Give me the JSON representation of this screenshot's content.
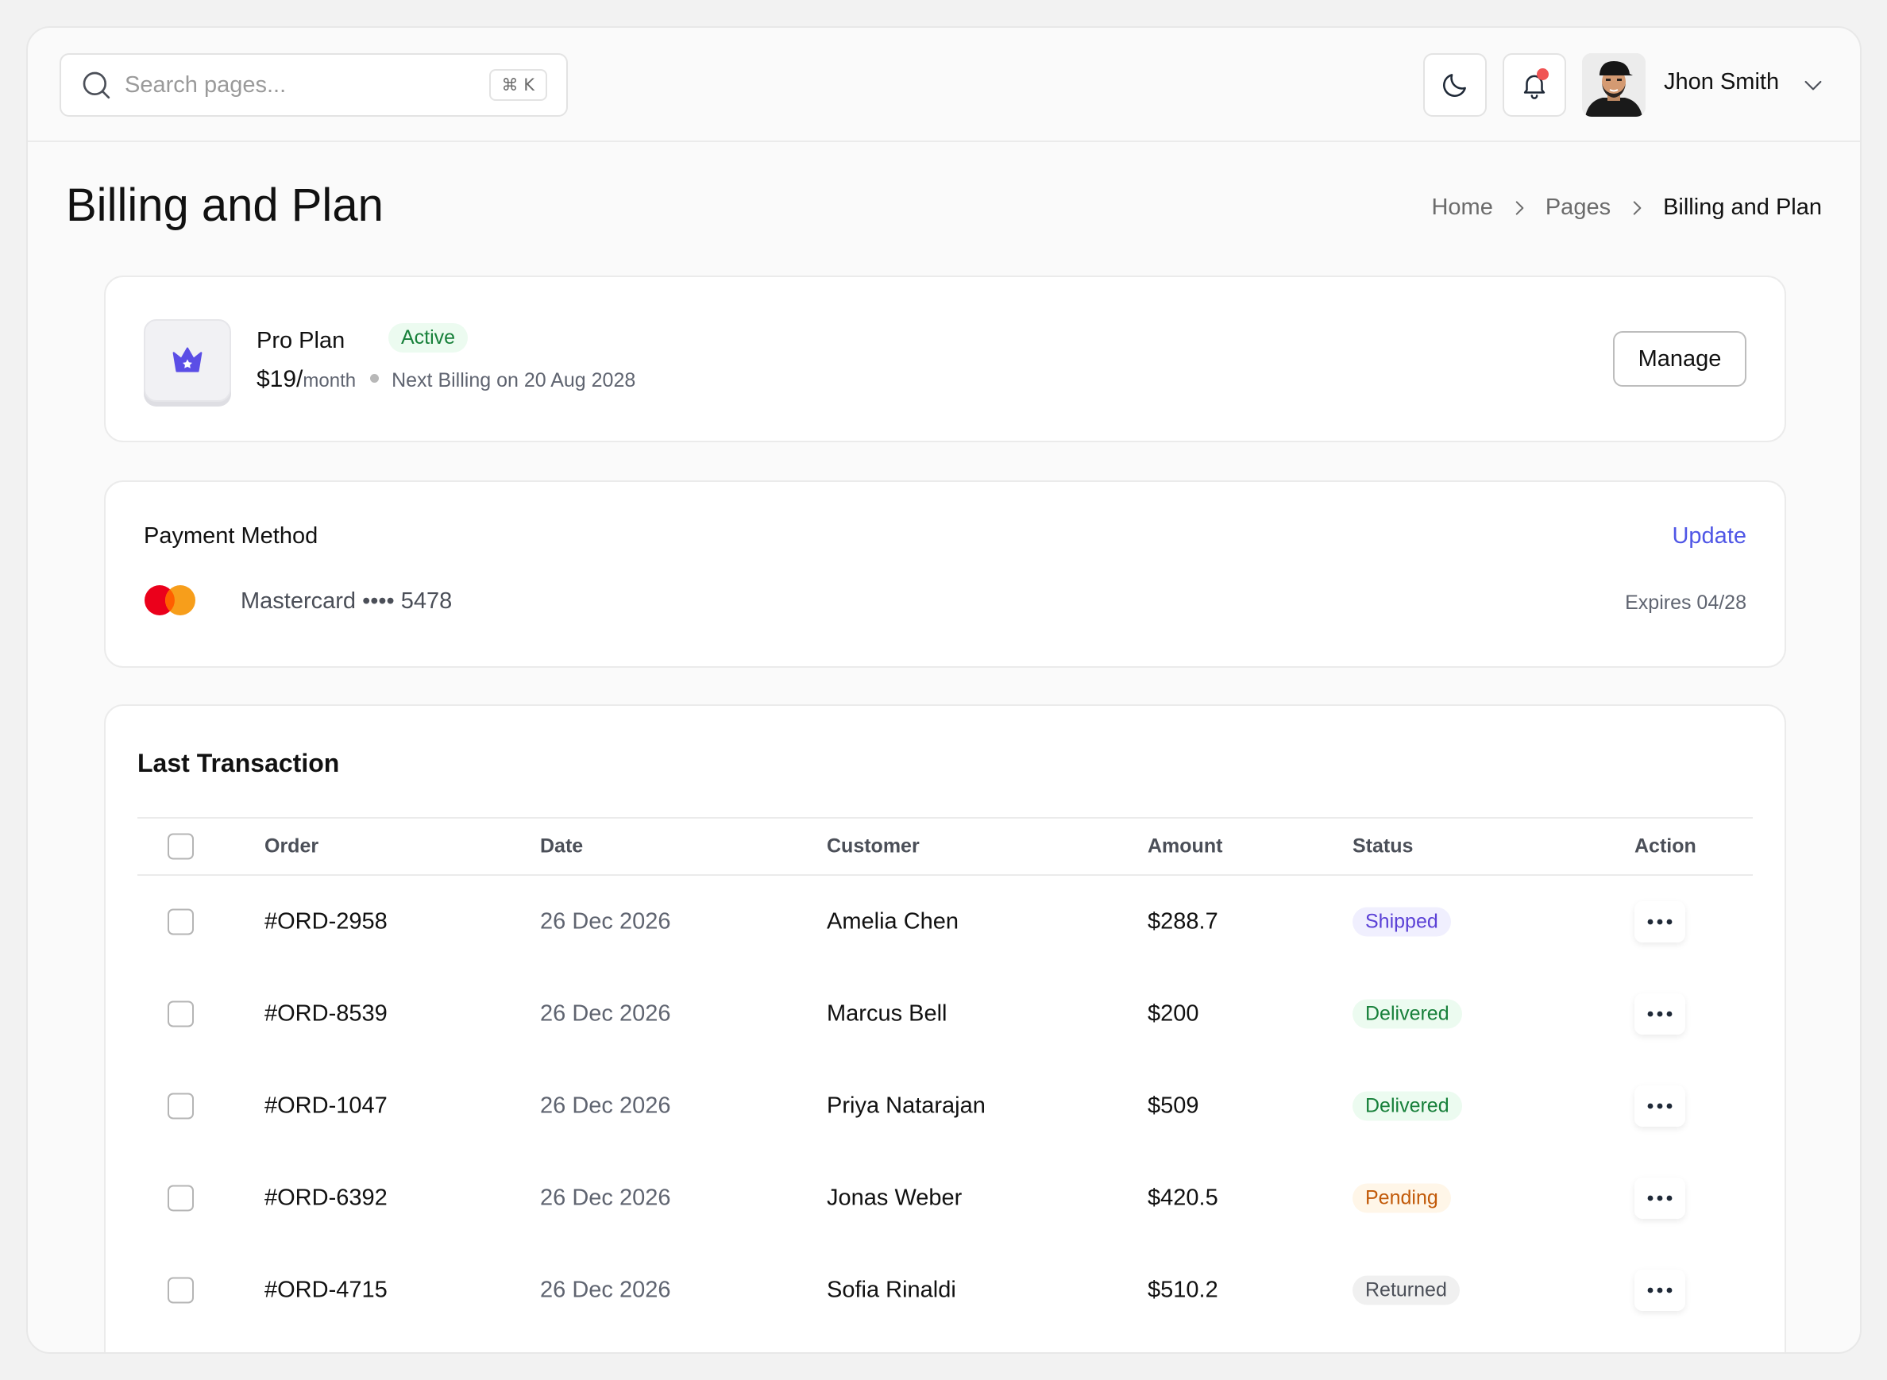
{
  "header": {
    "search_placeholder": "Search pages...",
    "search_shortcut": "⌘ K",
    "user_name": "Jhon Smith",
    "icons": [
      "search-icon",
      "moon-icon",
      "bell-icon",
      "chevron-down-icon"
    ],
    "notification_dot_color": "#f05454"
  },
  "page": {
    "title": "Billing and Plan",
    "breadcrumb": [
      "Home",
      "Pages",
      "Billing and Plan"
    ]
  },
  "plan": {
    "name": "Pro Plan",
    "status": "Active",
    "price": "$19/",
    "period": "month",
    "next_billing": "Next Billing on 20 Aug 2028",
    "manage_label": "Manage",
    "icon": "crown-icon",
    "icon_color": "#5b4ee6"
  },
  "payment": {
    "title": "Payment Method",
    "update_label": "Update",
    "card": "Mastercard •••• 5478",
    "expires": "Expires 04/28",
    "accent_color": "#4f56e6"
  },
  "transactions": {
    "title": "Last Transaction",
    "columns": [
      "Order",
      "Date",
      "Customer",
      "Amount",
      "Status",
      "Action"
    ],
    "rows": [
      {
        "order": "#ORD-2958",
        "date": "26 Dec 2026",
        "customer": "Amelia Chen",
        "amount": "$288.7",
        "status": "Shipped"
      },
      {
        "order": "#ORD-8539",
        "date": "26 Dec 2026",
        "customer": "Marcus Bell",
        "amount": "$200",
        "status": "Delivered"
      },
      {
        "order": "#ORD-1047",
        "date": "26 Dec 2026",
        "customer": "Priya Natarajan",
        "amount": "$509",
        "status": "Delivered"
      },
      {
        "order": "#ORD-6392",
        "date": "26 Dec 2026",
        "customer": "Jonas Weber",
        "amount": "$420.5",
        "status": "Pending"
      },
      {
        "order": "#ORD-4715",
        "date": "26 Dec 2026",
        "customer": "Sofia Rinaldi",
        "amount": "$510.2",
        "status": "Returned"
      }
    ],
    "status_colors": {
      "Shipped": "#5b41d6",
      "Delivered": "#17803a",
      "Pending": "#c25a09",
      "Returned": "#4b4f58"
    }
  }
}
